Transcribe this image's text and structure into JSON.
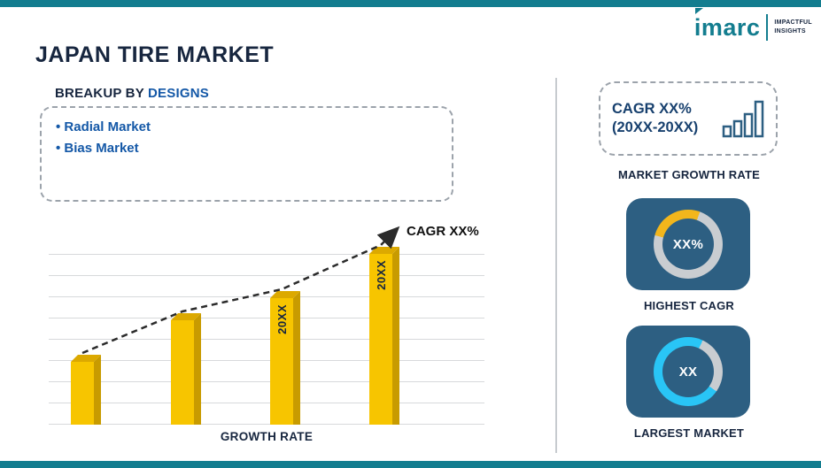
{
  "page": {
    "title": "JAPAN TIRE MARKET"
  },
  "logo": {
    "text": "imarc",
    "tagline_line1": "IMPACTFUL",
    "tagline_line2": "INSIGHTS",
    "brand_color": "#137D8F"
  },
  "breakup": {
    "prefix": "BREAKUP BY ",
    "highlight": "DESIGNS",
    "items": [
      "Radial Market",
      "Bias Market"
    ]
  },
  "chart_data": {
    "type": "bar",
    "title": "Growth Rate trend with CAGR arrow",
    "values_percent_of_max": [
      37,
      61,
      74,
      100
    ],
    "bar_labels": [
      "",
      "",
      "20XX",
      "20XX"
    ],
    "trend_label": "CAGR XX%",
    "xlabel": "GROWTH RATE",
    "ylim": [
      0,
      100
    ],
    "grid": true,
    "bar_color": "#F7C500",
    "bar_side_color": "#C89B00",
    "bar_top_color": "#DCA900",
    "trend_style": "dashed-arrow"
  },
  "sidebar": {
    "growth_card": {
      "line1": "CAGR XX%",
      "line2": "(20XX-20XX)"
    },
    "growth_caption": "MARKET GROWTH RATE",
    "donuts": [
      {
        "value": "XX%",
        "caption": "HIGHEST CAGR",
        "ring_color": "#C9CDD1",
        "segment": {
          "color": "#F2B61C",
          "from_deg": -75,
          "to_deg": 20
        }
      },
      {
        "value": "XX",
        "caption": "LARGEST MARKET",
        "ring_color": "#29C5F6",
        "segment": {
          "color": "#C9CDD1",
          "from_deg": 25,
          "to_deg": 125
        }
      }
    ],
    "card_bg": "#2D5F82"
  }
}
